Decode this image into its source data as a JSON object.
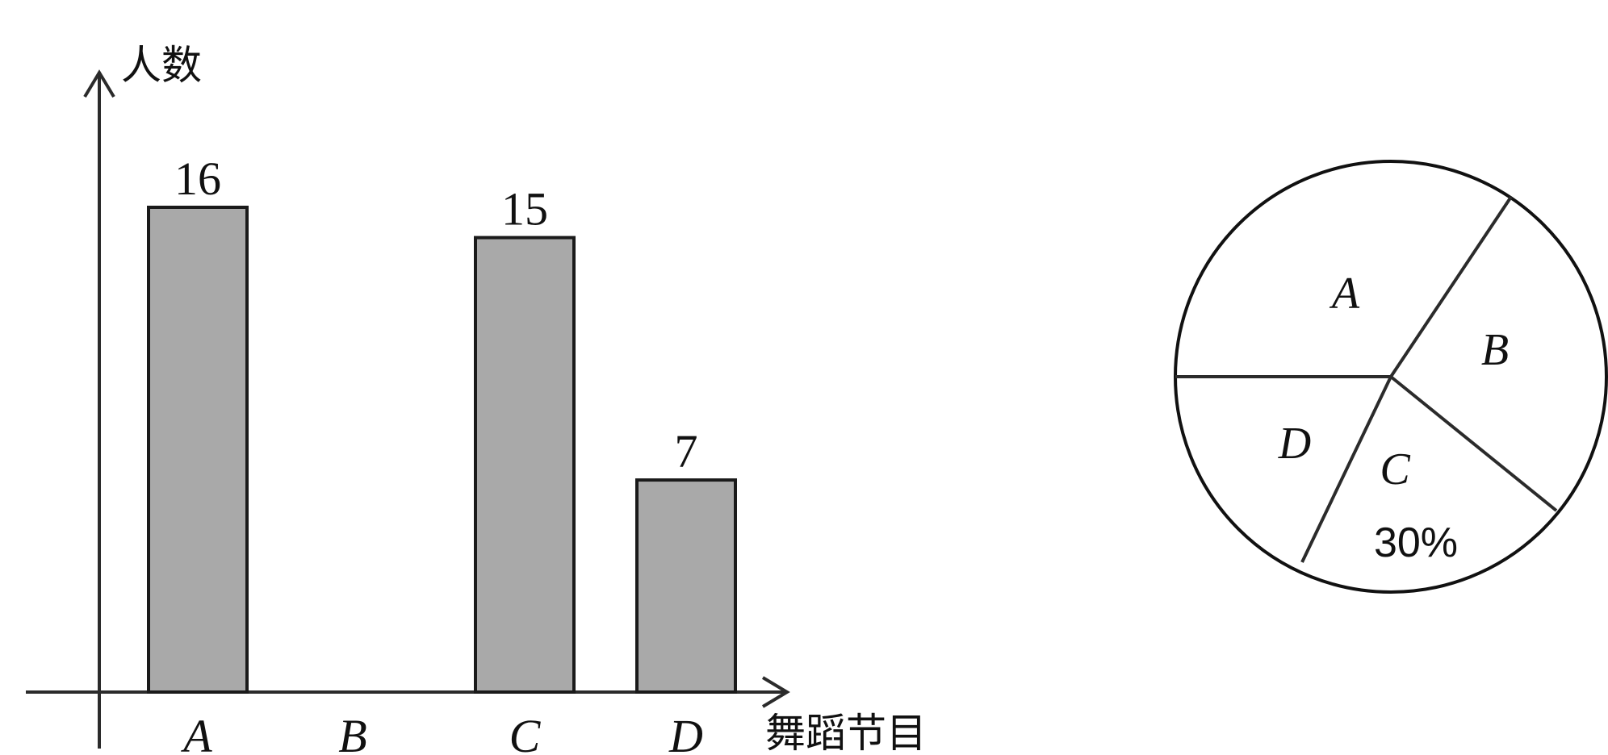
{
  "chart_data": [
    {
      "type": "bar",
      "ylabel": "人数",
      "xlabel": "舞蹈节目",
      "categories": [
        "A",
        "B",
        "C",
        "D"
      ],
      "values": [
        16,
        null,
        15,
        7
      ],
      "data_labels": [
        "16",
        "",
        "15",
        "7"
      ],
      "ylim": [
        0,
        18
      ],
      "grid": false
    },
    {
      "type": "pie",
      "slices": [
        {
          "label": "A",
          "percent": null
        },
        {
          "label": "B",
          "percent": null
        },
        {
          "label": "C",
          "percent": 30,
          "percent_label": "30%"
        },
        {
          "label": "D",
          "percent": null
        }
      ]
    }
  ]
}
